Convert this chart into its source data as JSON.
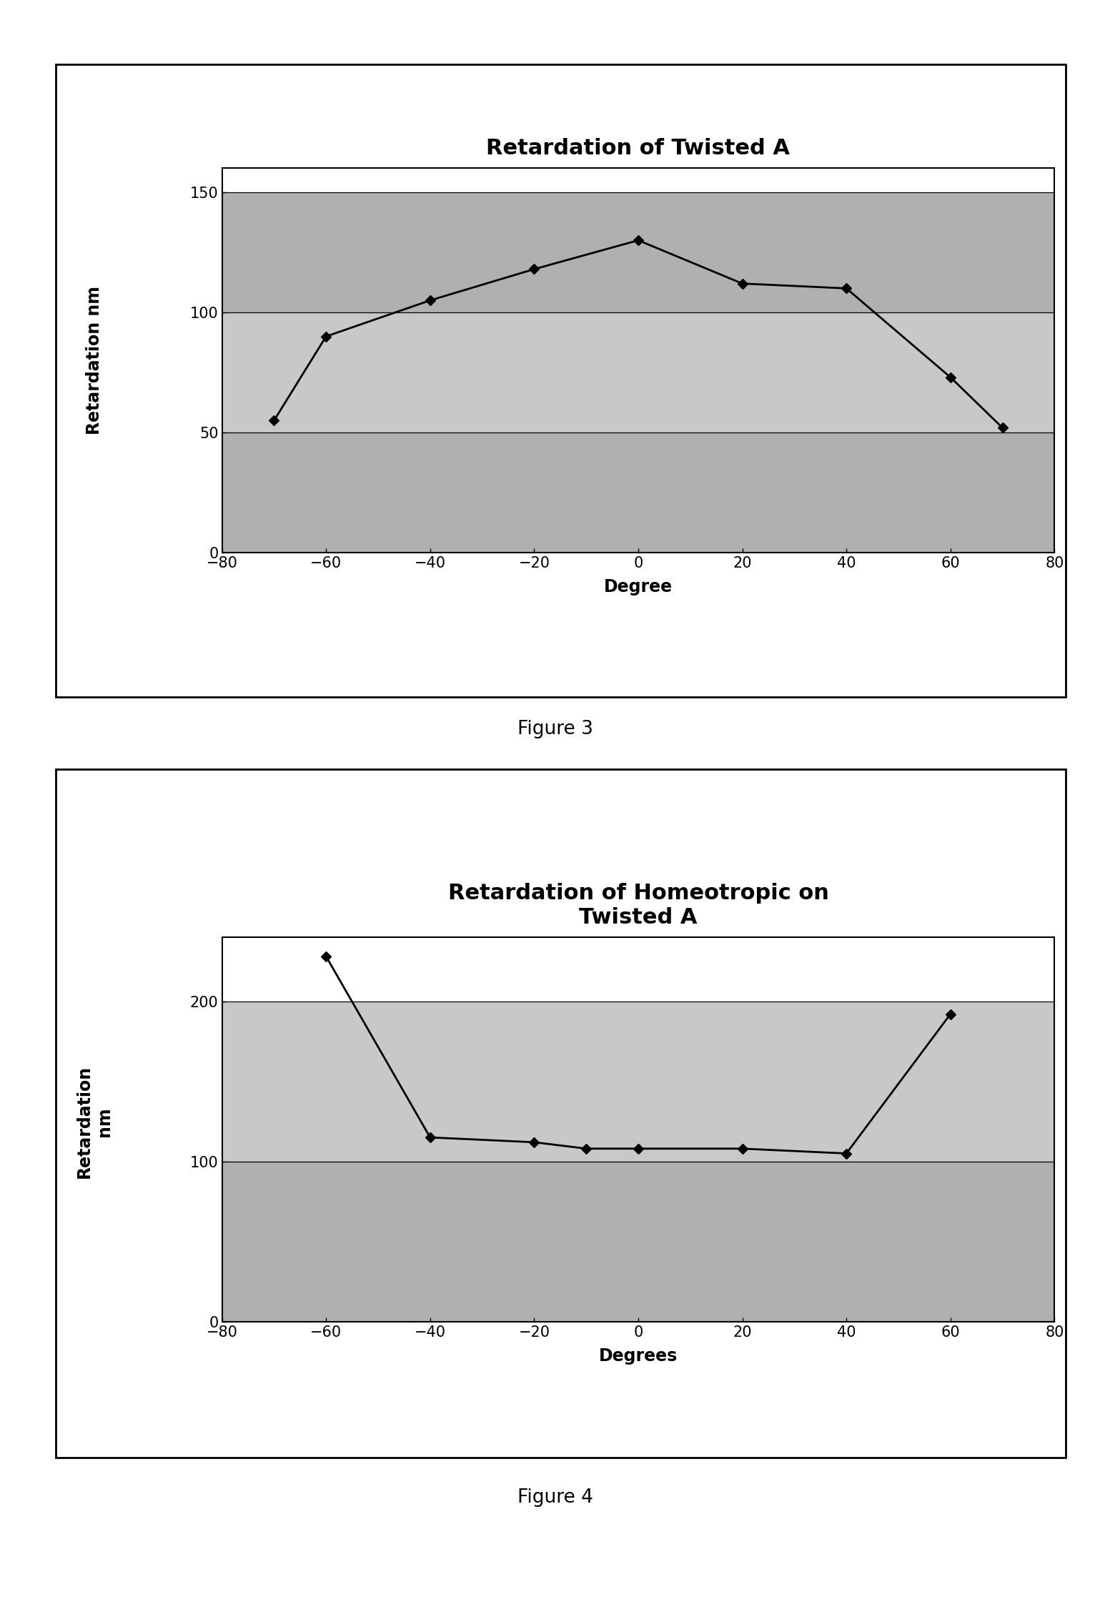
{
  "fig3": {
    "title": "Retardation of Twisted A",
    "xlabel": "Degree",
    "ylabel": "Retardation nm",
    "xlim": [
      -80,
      80
    ],
    "ylim": [
      0,
      160
    ],
    "xticks": [
      -80,
      -60,
      -40,
      -20,
      0,
      20,
      40,
      60,
      80
    ],
    "yticks": [
      0,
      50,
      100,
      150
    ],
    "x": [
      -70,
      -60,
      -40,
      -20,
      0,
      20,
      40,
      60,
      70
    ],
    "y": [
      55,
      90,
      105,
      118,
      130,
      112,
      110,
      73,
      52
    ],
    "band_colors": [
      "#b0b0b0",
      "#c8c8c8",
      "#b0b0b0",
      "#c8c8c8"
    ],
    "line_color": "#000000",
    "marker": "D",
    "marker_size": 7,
    "title_fontsize": 22,
    "label_fontsize": 17,
    "tick_fontsize": 15
  },
  "fig4": {
    "title": "Retardation of Homeotropic on\nTwisted A",
    "xlabel": "Degrees",
    "ylabel": "Retardation\nnm",
    "xlim": [
      -80,
      80
    ],
    "ylim": [
      0,
      240
    ],
    "xticks": [
      -80,
      -60,
      -40,
      -20,
      0,
      20,
      40,
      60,
      80
    ],
    "yticks": [
      0,
      100,
      200
    ],
    "x": [
      -60,
      -40,
      -20,
      -10,
      0,
      20,
      40,
      60
    ],
    "y": [
      228,
      115,
      112,
      108,
      108,
      108,
      105,
      192
    ],
    "band_colors": [
      "#b0b0b0",
      "#c8c8c8",
      "#b0b0b0"
    ],
    "line_color": "#000000",
    "marker": "D",
    "marker_size": 7,
    "title_fontsize": 22,
    "label_fontsize": 17,
    "tick_fontsize": 15
  },
  "fig3_caption": "Figure 3",
  "fig4_caption": "Figure 4",
  "caption_fontsize": 19,
  "page_bg": "#ffffff"
}
